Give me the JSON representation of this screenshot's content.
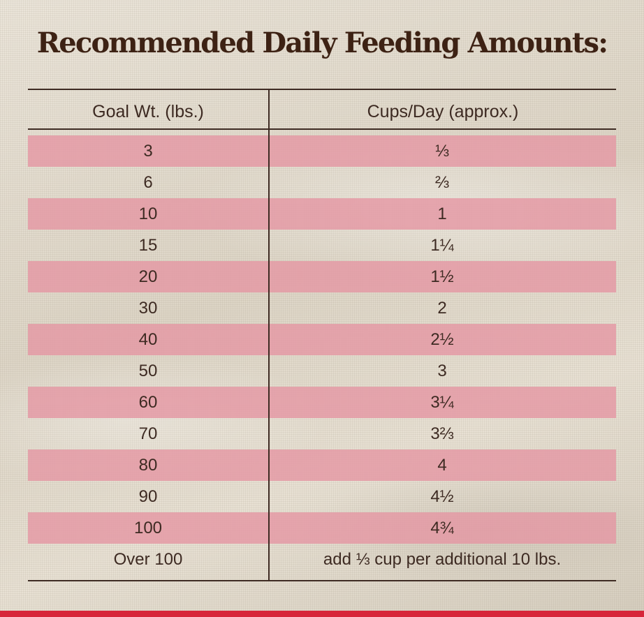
{
  "title": "Recommended Daily Feeding Amounts:",
  "headers": {
    "goal_weight": "Goal Wt. (lbs.)",
    "cups_per_day": "Cups/Day (approx.)"
  },
  "rows": [
    {
      "weight": "3",
      "cups": "⅓"
    },
    {
      "weight": "6",
      "cups": "⅔"
    },
    {
      "weight": "10",
      "cups": "1"
    },
    {
      "weight": "15",
      "cups": "1¼"
    },
    {
      "weight": "20",
      "cups": "1½"
    },
    {
      "weight": "30",
      "cups": "2"
    },
    {
      "weight": "40",
      "cups": "2½"
    },
    {
      "weight": "50",
      "cups": "3"
    },
    {
      "weight": "60",
      "cups": "3¼"
    },
    {
      "weight": "70",
      "cups": "3⅔"
    },
    {
      "weight": "80",
      "cups": "4"
    },
    {
      "weight": "90",
      "cups": "4½"
    },
    {
      "weight": "100",
      "cups": "4¾"
    },
    {
      "weight": "Over 100",
      "cups": "add ⅓ cup per additional 10 lbs."
    }
  ],
  "colors": {
    "text": "#3d2a22",
    "stripe": "#e497a4",
    "accent_bar": "#d7263a"
  }
}
